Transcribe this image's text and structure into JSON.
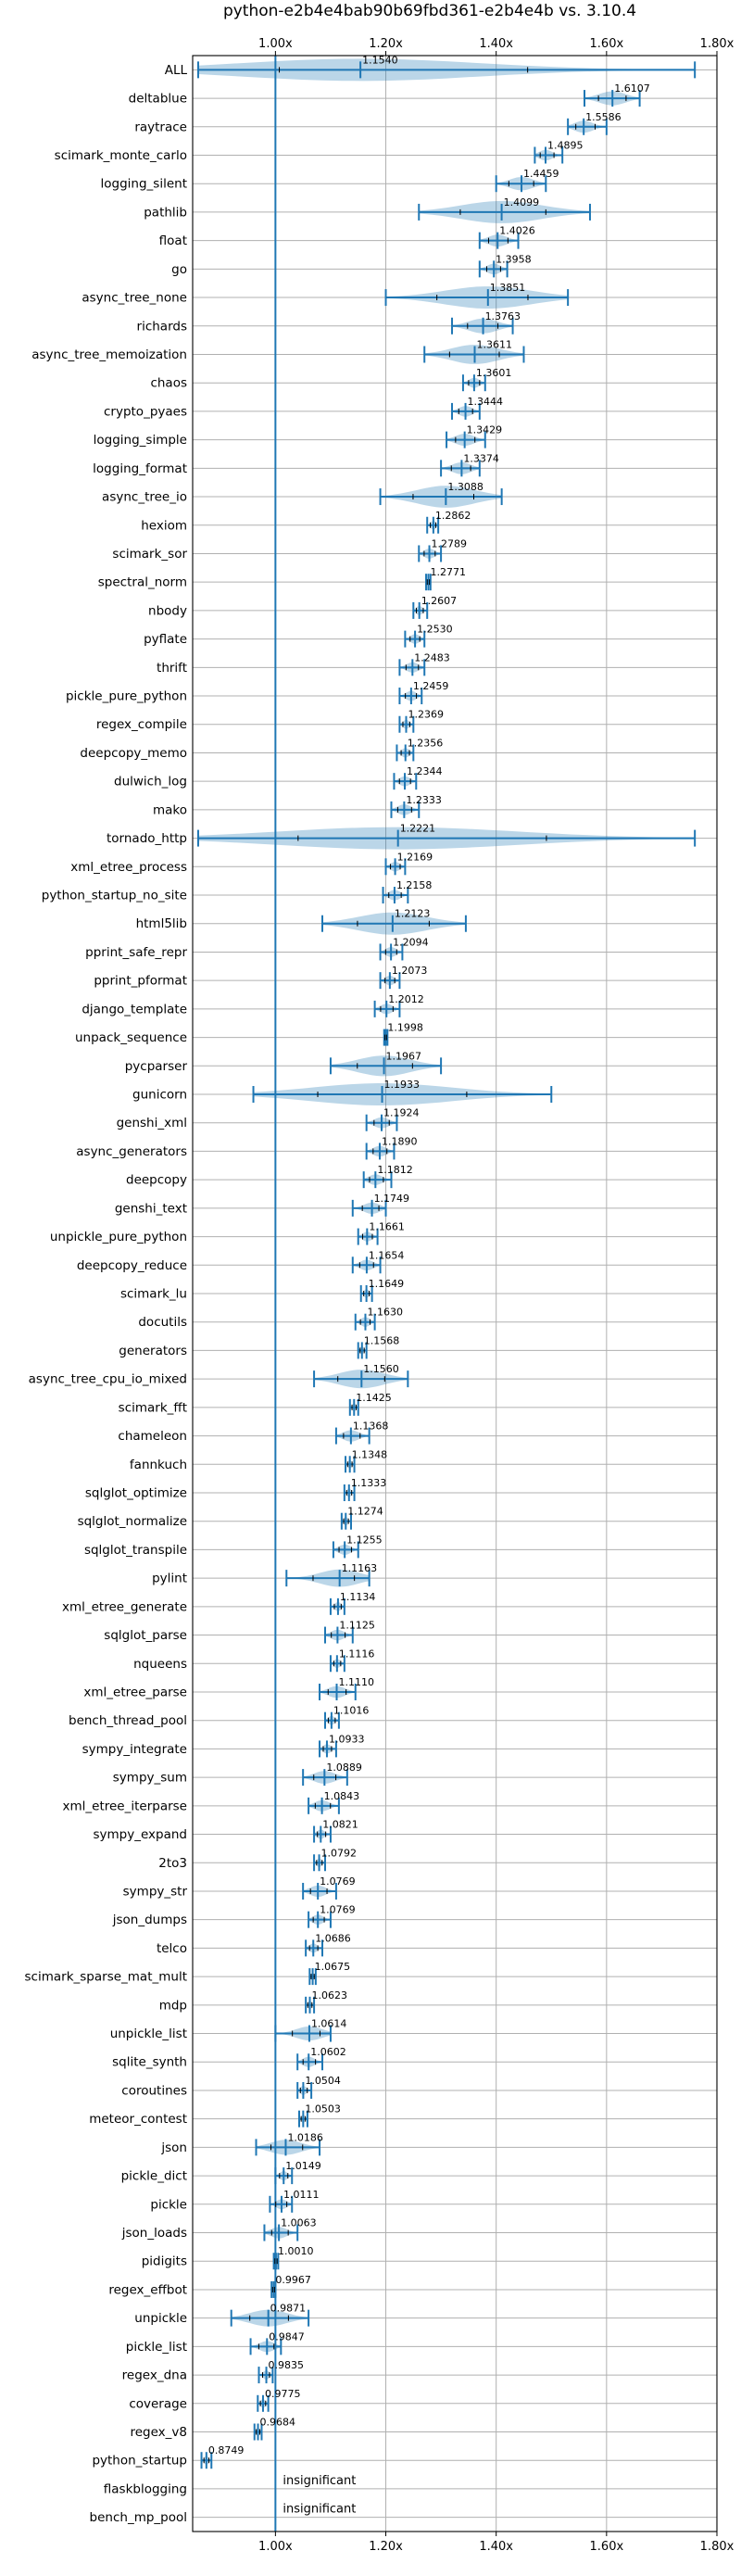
{
  "chart_data": {
    "type": "violin",
    "title": "python-e2b4e4bab90b69fbd361-e2b4e4b vs. 3.10.4",
    "xlim": [
      0.85,
      1.8
    ],
    "xticks": [
      1.0,
      1.2,
      1.4,
      1.6,
      1.8
    ],
    "xtick_labels": [
      "1.00x",
      "1.20x",
      "1.40x",
      "1.60x",
      "1.80x"
    ],
    "reference_line": 1.0,
    "grid": true,
    "benchmarks": [
      {
        "name": "ALL",
        "label": "1.1540",
        "mean": 1.154,
        "low": 0.86,
        "high": 1.76
      },
      {
        "name": "deltablue",
        "label": "1.6107",
        "mean": 1.6107,
        "low": 1.56,
        "high": 1.66
      },
      {
        "name": "raytrace",
        "label": "1.5586",
        "mean": 1.5586,
        "low": 1.53,
        "high": 1.6
      },
      {
        "name": "scimark_monte_carlo",
        "label": "1.4895",
        "mean": 1.4895,
        "low": 1.47,
        "high": 1.52
      },
      {
        "name": "logging_silent",
        "label": "1.4459",
        "mean": 1.4459,
        "low": 1.4,
        "high": 1.49
      },
      {
        "name": "pathlib",
        "label": "1.4099",
        "mean": 1.4099,
        "low": 1.26,
        "high": 1.57
      },
      {
        "name": "float",
        "label": "1.4026",
        "mean": 1.4026,
        "low": 1.37,
        "high": 1.44
      },
      {
        "name": "go",
        "label": "1.3958",
        "mean": 1.3958,
        "low": 1.37,
        "high": 1.42
      },
      {
        "name": "async_tree_none",
        "label": "1.3851",
        "mean": 1.3851,
        "low": 1.2,
        "high": 1.53
      },
      {
        "name": "richards",
        "label": "1.3763",
        "mean": 1.3763,
        "low": 1.32,
        "high": 1.43
      },
      {
        "name": "async_tree_memoization",
        "label": "1.3611",
        "mean": 1.3611,
        "low": 1.27,
        "high": 1.45
      },
      {
        "name": "chaos",
        "label": "1.3601",
        "mean": 1.3601,
        "low": 1.34,
        "high": 1.38
      },
      {
        "name": "crypto_pyaes",
        "label": "1.3444",
        "mean": 1.3444,
        "low": 1.32,
        "high": 1.37
      },
      {
        "name": "logging_simple",
        "label": "1.3429",
        "mean": 1.3429,
        "low": 1.31,
        "high": 1.38
      },
      {
        "name": "logging_format",
        "label": "1.3374",
        "mean": 1.3374,
        "low": 1.3,
        "high": 1.37
      },
      {
        "name": "async_tree_io",
        "label": "1.3088",
        "mean": 1.3088,
        "low": 1.19,
        "high": 1.41
      },
      {
        "name": "hexiom",
        "label": "1.2862",
        "mean": 1.2862,
        "low": 1.275,
        "high": 1.295
      },
      {
        "name": "scimark_sor",
        "label": "1.2789",
        "mean": 1.2789,
        "low": 1.26,
        "high": 1.3
      },
      {
        "name": "spectral_norm",
        "label": "1.2771",
        "mean": 1.2771,
        "low": 1.273,
        "high": 1.281
      },
      {
        "name": "nbody",
        "label": "1.2607",
        "mean": 1.2607,
        "low": 1.25,
        "high": 1.275
      },
      {
        "name": "pyflate",
        "label": "1.2530",
        "mean": 1.253,
        "low": 1.235,
        "high": 1.27
      },
      {
        "name": "thrift",
        "label": "1.2483",
        "mean": 1.2483,
        "low": 1.225,
        "high": 1.27
      },
      {
        "name": "pickle_pure_python",
        "label": "1.2459",
        "mean": 1.2459,
        "low": 1.225,
        "high": 1.265
      },
      {
        "name": "regex_compile",
        "label": "1.2369",
        "mean": 1.2369,
        "low": 1.225,
        "high": 1.25
      },
      {
        "name": "deepcopy_memo",
        "label": "1.2356",
        "mean": 1.2356,
        "low": 1.22,
        "high": 1.25
      },
      {
        "name": "dulwich_log",
        "label": "1.2344",
        "mean": 1.2344,
        "low": 1.215,
        "high": 1.255
      },
      {
        "name": "mako",
        "label": "1.2333",
        "mean": 1.2333,
        "low": 1.21,
        "high": 1.26
      },
      {
        "name": "tornado_http",
        "label": "1.2221",
        "mean": 1.2221,
        "low": 0.86,
        "high": 1.76
      },
      {
        "name": "xml_etree_process",
        "label": "1.2169",
        "mean": 1.2169,
        "low": 1.2,
        "high": 1.235
      },
      {
        "name": "python_startup_no_site",
        "label": "1.2158",
        "mean": 1.2158,
        "low": 1.195,
        "high": 1.24
      },
      {
        "name": "html5lib",
        "label": "1.2123",
        "mean": 1.2123,
        "low": 1.085,
        "high": 1.345
      },
      {
        "name": "pprint_safe_repr",
        "label": "1.2094",
        "mean": 1.2094,
        "low": 1.19,
        "high": 1.23
      },
      {
        "name": "pprint_pformat",
        "label": "1.2073",
        "mean": 1.2073,
        "low": 1.19,
        "high": 1.225
      },
      {
        "name": "django_template",
        "label": "1.2012",
        "mean": 1.2012,
        "low": 1.18,
        "high": 1.225
      },
      {
        "name": "unpack_sequence",
        "label": "1.1998",
        "mean": 1.1998,
        "low": 1.197,
        "high": 1.203
      },
      {
        "name": "pycparser",
        "label": "1.1967",
        "mean": 1.1967,
        "low": 1.1,
        "high": 1.3
      },
      {
        "name": "gunicorn",
        "label": "1.1933",
        "mean": 1.1933,
        "low": 0.96,
        "high": 1.5
      },
      {
        "name": "genshi_xml",
        "label": "1.1924",
        "mean": 1.1924,
        "low": 1.165,
        "high": 1.22
      },
      {
        "name": "async_generators",
        "label": "1.1890",
        "mean": 1.189,
        "low": 1.165,
        "high": 1.215
      },
      {
        "name": "deepcopy",
        "label": "1.1812",
        "mean": 1.1812,
        "low": 1.16,
        "high": 1.21
      },
      {
        "name": "genshi_text",
        "label": "1.1749",
        "mean": 1.1749,
        "low": 1.14,
        "high": 1.2
      },
      {
        "name": "unpickle_pure_python",
        "label": "1.1661",
        "mean": 1.1661,
        "low": 1.15,
        "high": 1.185
      },
      {
        "name": "deepcopy_reduce",
        "label": "1.1654",
        "mean": 1.1654,
        "low": 1.14,
        "high": 1.19
      },
      {
        "name": "scimark_lu",
        "label": "1.1649",
        "mean": 1.1649,
        "low": 1.155,
        "high": 1.175
      },
      {
        "name": "docutils",
        "label": "1.1630",
        "mean": 1.163,
        "low": 1.145,
        "high": 1.18
      },
      {
        "name": "generators",
        "label": "1.1568",
        "mean": 1.1568,
        "low": 1.15,
        "high": 1.165
      },
      {
        "name": "async_tree_cpu_io_mixed",
        "label": "1.1560",
        "mean": 1.156,
        "low": 1.07,
        "high": 1.24
      },
      {
        "name": "scimark_fft",
        "label": "1.1425",
        "mean": 1.1425,
        "low": 1.135,
        "high": 1.15
      },
      {
        "name": "chameleon",
        "label": "1.1368",
        "mean": 1.1368,
        "low": 1.11,
        "high": 1.17
      },
      {
        "name": "fannkuch",
        "label": "1.1348",
        "mean": 1.1348,
        "low": 1.127,
        "high": 1.143
      },
      {
        "name": "sqlglot_optimize",
        "label": "1.1333",
        "mean": 1.1333,
        "low": 1.125,
        "high": 1.143
      },
      {
        "name": "sqlglot_normalize",
        "label": "1.1274",
        "mean": 1.1274,
        "low": 1.12,
        "high": 1.137
      },
      {
        "name": "sqlglot_transpile",
        "label": "1.1255",
        "mean": 1.1255,
        "low": 1.105,
        "high": 1.15
      },
      {
        "name": "pylint",
        "label": "1.1163",
        "mean": 1.1163,
        "low": 1.02,
        "high": 1.17
      },
      {
        "name": "xml_etree_generate",
        "label": "1.1134",
        "mean": 1.1134,
        "low": 1.1,
        "high": 1.125
      },
      {
        "name": "sqlglot_parse",
        "label": "1.1125",
        "mean": 1.1125,
        "low": 1.09,
        "high": 1.14
      },
      {
        "name": "nqueens",
        "label": "1.1116",
        "mean": 1.1116,
        "low": 1.1,
        "high": 1.125
      },
      {
        "name": "xml_etree_parse",
        "label": "1.1110",
        "mean": 1.111,
        "low": 1.08,
        "high": 1.145
      },
      {
        "name": "bench_thread_pool",
        "label": "1.1016",
        "mean": 1.1016,
        "low": 1.09,
        "high": 1.115
      },
      {
        "name": "sympy_integrate",
        "label": "1.0933",
        "mean": 1.0933,
        "low": 1.08,
        "high": 1.11
      },
      {
        "name": "sympy_sum",
        "label": "1.0889",
        "mean": 1.0889,
        "low": 1.05,
        "high": 1.13
      },
      {
        "name": "xml_etree_iterparse",
        "label": "1.0843",
        "mean": 1.0843,
        "low": 1.06,
        "high": 1.115
      },
      {
        "name": "sympy_expand",
        "label": "1.0821",
        "mean": 1.0821,
        "low": 1.07,
        "high": 1.1
      },
      {
        "name": "2to3",
        "label": "1.0792",
        "mean": 1.0792,
        "low": 1.07,
        "high": 1.09
      },
      {
        "name": "sympy_str",
        "label": "1.0769",
        "mean": 1.0769,
        "low": 1.05,
        "high": 1.11
      },
      {
        "name": "json_dumps",
        "label": "1.0769",
        "mean": 1.0769,
        "low": 1.06,
        "high": 1.1
      },
      {
        "name": "telco",
        "label": "1.0686",
        "mean": 1.0686,
        "low": 1.055,
        "high": 1.085
      },
      {
        "name": "scimark_sparse_mat_mult",
        "label": "1.0675",
        "mean": 1.0675,
        "low": 1.062,
        "high": 1.073
      },
      {
        "name": "mdp",
        "label": "1.0623",
        "mean": 1.0623,
        "low": 1.055,
        "high": 1.07
      },
      {
        "name": "unpickle_list",
        "label": "1.0614",
        "mean": 1.0614,
        "low": 1.0,
        "high": 1.1
      },
      {
        "name": "sqlite_synth",
        "label": "1.0602",
        "mean": 1.0602,
        "low": 1.04,
        "high": 1.085
      },
      {
        "name": "coroutines",
        "label": "1.0504",
        "mean": 1.0504,
        "low": 1.04,
        "high": 1.065
      },
      {
        "name": "meteor_contest",
        "label": "1.0503",
        "mean": 1.0503,
        "low": 1.043,
        "high": 1.058
      },
      {
        "name": "json",
        "label": "1.0186",
        "mean": 1.0186,
        "low": 0.965,
        "high": 1.08
      },
      {
        "name": "pickle_dict",
        "label": "1.0149",
        "mean": 1.0149,
        "low": 1.0,
        "high": 1.03
      },
      {
        "name": "pickle",
        "label": "1.0111",
        "mean": 1.0111,
        "low": 0.99,
        "high": 1.03
      },
      {
        "name": "json_loads",
        "label": "1.0063",
        "mean": 1.0063,
        "low": 0.98,
        "high": 1.04
      },
      {
        "name": "pidigits",
        "label": "1.0010",
        "mean": 1.001,
        "low": 0.997,
        "high": 1.005
      },
      {
        "name": "regex_effbot",
        "label": "0.9967",
        "mean": 0.9967,
        "low": 0.993,
        "high": 1.0
      },
      {
        "name": "unpickle",
        "label": "0.9871",
        "mean": 0.9871,
        "low": 0.92,
        "high": 1.06
      },
      {
        "name": "pickle_list",
        "label": "0.9847",
        "mean": 0.9847,
        "low": 0.955,
        "high": 1.01
      },
      {
        "name": "regex_dna",
        "label": "0.9835",
        "mean": 0.9835,
        "low": 0.97,
        "high": 0.995
      },
      {
        "name": "coverage",
        "label": "0.9775",
        "mean": 0.9775,
        "low": 0.968,
        "high": 0.987
      },
      {
        "name": "regex_v8",
        "label": "0.9684",
        "mean": 0.9684,
        "low": 0.962,
        "high": 0.975
      },
      {
        "name": "python_startup",
        "label": "0.8749",
        "mean": 0.8749,
        "low": 0.866,
        "high": 0.884
      },
      {
        "name": "flaskblogging",
        "label": "insignificant",
        "mean": null,
        "low": null,
        "high": null
      },
      {
        "name": "bench_mp_pool",
        "label": "insignificant",
        "mean": null,
        "low": null,
        "high": null
      }
    ]
  }
}
